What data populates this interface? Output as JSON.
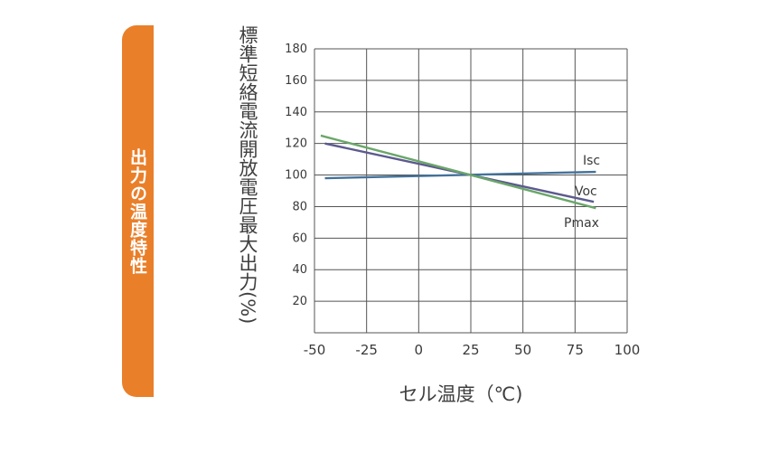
{
  "side_tab": {
    "label": "出力の温度特性",
    "color": "#ea7f2a"
  },
  "chart_data": {
    "type": "line",
    "title": "",
    "xlabel": "セル温度（℃)",
    "ylabel": "標準短絡電流開放電圧最大出力(%)",
    "xlim": [
      -50,
      100
    ],
    "ylim": [
      0,
      180
    ],
    "x_ticks": [
      "-50",
      "-25",
      "0",
      "25",
      "50",
      "75",
      "100"
    ],
    "y_ticks": [
      "20",
      "40",
      "60",
      "80",
      "100",
      "120",
      "140",
      "160",
      "180"
    ],
    "grid": true,
    "series": [
      {
        "name": "Isc",
        "color": "#44729a",
        "points": [
          [
            -45,
            98
          ],
          [
            85,
            102
          ]
        ]
      },
      {
        "name": "Voc",
        "color": "#5c5a8e",
        "points": [
          [
            -45,
            120
          ],
          [
            25,
            100
          ],
          [
            84,
            83
          ]
        ]
      },
      {
        "name": "Pmax",
        "color": "#6aa66a",
        "points": [
          [
            -47,
            125
          ],
          [
            25,
            100
          ],
          [
            85,
            79
          ]
        ]
      }
    ]
  }
}
